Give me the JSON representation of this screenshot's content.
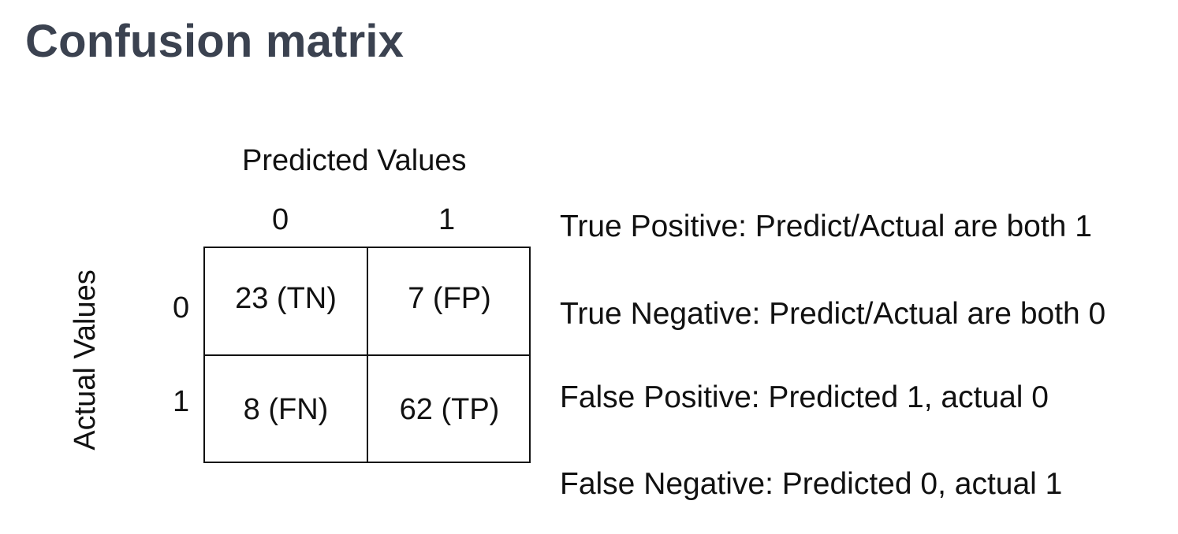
{
  "title": "Confusion matrix",
  "matrix": {
    "predicted_label": "Predicted Values",
    "actual_label": "Actual Values",
    "predicted_classes": [
      "0",
      "1"
    ],
    "actual_classes": [
      "0",
      "1"
    ],
    "cells": [
      [
        "23 (TN)",
        "7 (FP)"
      ],
      [
        "8 (FN)",
        "62 (TP)"
      ]
    ]
  },
  "legend": [
    "True Positive: Predict/Actual are both 1",
    "True Negative: Predict/Actual are both 0",
    "False Positive: Predicted 1, actual 0",
    "False Negative: Predicted 0, actual 1"
  ]
}
